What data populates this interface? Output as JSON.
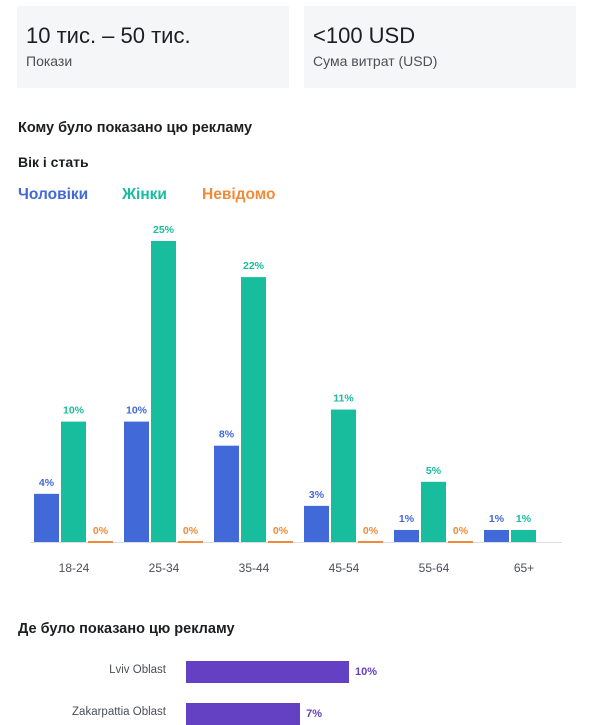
{
  "stats": [
    {
      "value": "10 тис. – 50 тис.",
      "label": "Покази"
    },
    {
      "value": "<100 USD",
      "label": "Сума витрат (USD)"
    }
  ],
  "audience": {
    "title": "Кому було показано цю рекламу",
    "subtitle": "Вік і стать"
  },
  "location": {
    "title": "Де було показано цю рекламу",
    "regions": [
      {
        "name": "Lviv Oblast",
        "value": 10,
        "label": "10%"
      },
      {
        "name": "Zakarpattia Oblast",
        "value": 7,
        "label": "7%"
      }
    ]
  },
  "colors": {
    "men": "#4169d8",
    "women": "#17bd9c",
    "unknown": "#f08b3a",
    "region": "#6441c2"
  },
  "chart_data": {
    "type": "bar",
    "categories": [
      "18-24",
      "25-34",
      "35-44",
      "45-54",
      "55-64",
      "65+"
    ],
    "series": [
      {
        "name": "Чоловіки",
        "values": [
          4,
          10,
          8,
          3,
          1,
          1
        ],
        "labels": [
          "4%",
          "10%",
          "8%",
          "3%",
          "1%",
          "1%"
        ]
      },
      {
        "name": "Жінки",
        "values": [
          10,
          25,
          22,
          11,
          5,
          1
        ],
        "labels": [
          "10%",
          "25%",
          "22%",
          "11%",
          "5%",
          "1%"
        ]
      },
      {
        "name": "Невідомо",
        "values": [
          0,
          0,
          0,
          0,
          0,
          0
        ],
        "labels": [
          "0%",
          "0%",
          "0%",
          "0%",
          "0%",
          ""
        ]
      }
    ],
    "ylim": [
      0,
      25
    ],
    "legend": "top-left",
    "grid": false
  }
}
